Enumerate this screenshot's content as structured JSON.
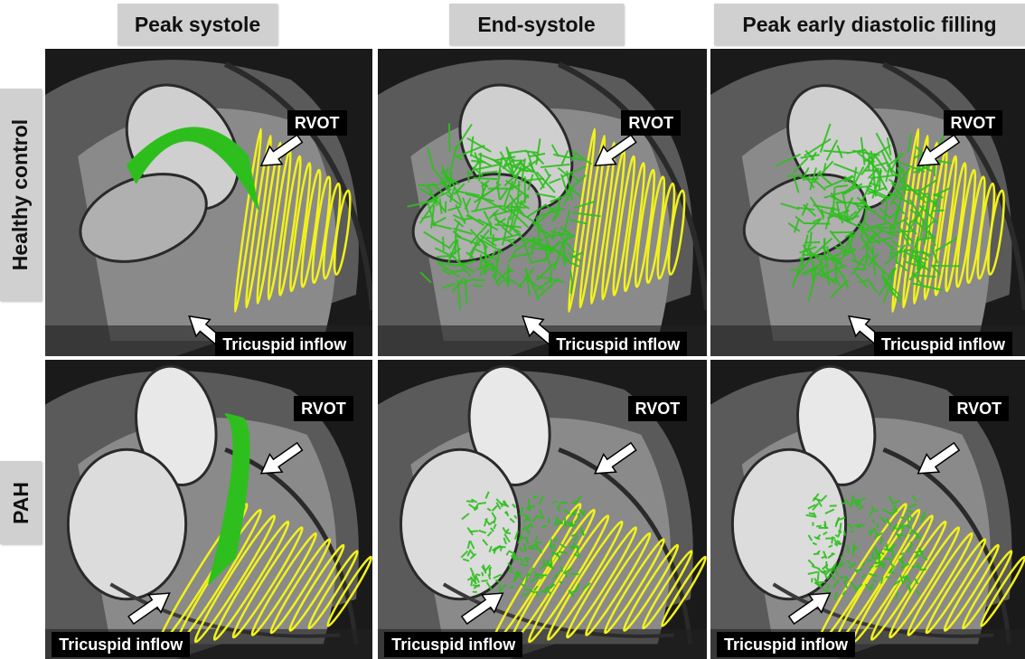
{
  "columns": {
    "c1": "Peak systole",
    "c2": "End-systole",
    "c3": "Peak early diastolic filling"
  },
  "rows": {
    "r1": "Healthy control",
    "r2": "PAH"
  },
  "labels": {
    "rvot": "RVOT",
    "tricuspid": "Tricuspid inflow"
  },
  "colors": {
    "flow": "#2fbf1f",
    "contour": "#f2f21a",
    "arrow": "#ffffff",
    "label_bg": "#000000",
    "header_bg": "#d0d0d0"
  }
}
